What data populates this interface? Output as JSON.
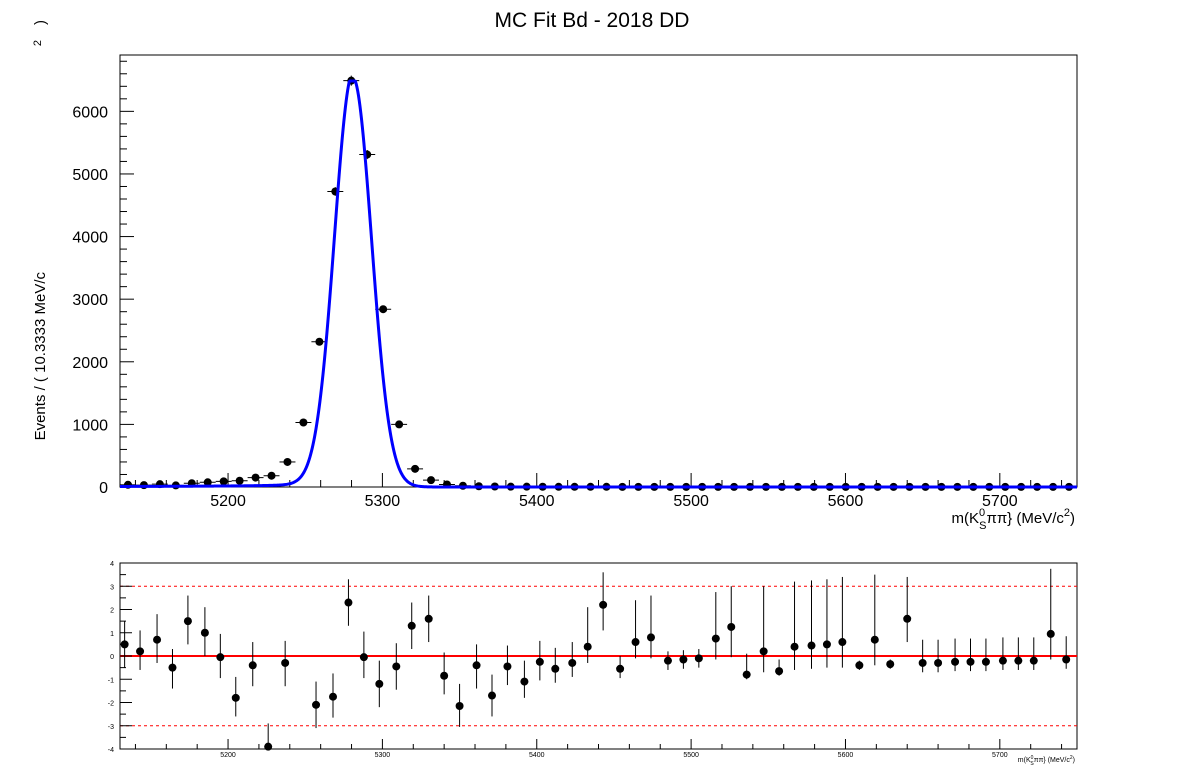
{
  "page": {
    "title": "MC Fit Bd - 2018 DD"
  },
  "chart_data": [
    {
      "type": "scatter",
      "subtype": "fit",
      "title": "MC Fit Bd - 2018 DD",
      "xlabel": "m(K_S^0 ππ} (MeV/c^2)",
      "ylabel": "Events / ( 10.3333 MeV/c  2 )",
      "xlim": [
        5130,
        5750
      ],
      "ylim": [
        0,
        6900
      ],
      "xticks": [
        5200,
        5300,
        5400,
        5500,
        5600,
        5700
      ],
      "xtick_labels": [
        "5200",
        "5300",
        "5400",
        "5500",
        "5600",
        "5700"
      ],
      "yticks": [
        0,
        1000,
        2000,
        3000,
        4000,
        5000,
        6000
      ],
      "ytick_labels": [
        "0",
        "1000",
        "2000",
        "3000",
        "4000",
        "5000",
        "6000"
      ],
      "bin_width": 10.3333,
      "x": [
        5135.17,
        5145.5,
        5155.83,
        5166.17,
        5176.5,
        5186.83,
        5197.17,
        5207.5,
        5217.83,
        5228.17,
        5238.5,
        5248.83,
        5259.17,
        5269.5,
        5279.83,
        5290.17,
        5300.5,
        5310.83,
        5321.17,
        5331.5,
        5341.83,
        5352.17,
        5362.5,
        5372.83,
        5383.17,
        5393.5,
        5403.83,
        5414.17,
        5424.5,
        5434.83,
        5445.17,
        5455.5,
        5465.83,
        5476.17,
        5486.5,
        5496.83,
        5507.17,
        5517.5,
        5527.83,
        5538.17,
        5548.5,
        5558.83,
        5569.17,
        5579.5,
        5589.83,
        5600.17,
        5610.5,
        5620.83,
        5631.17,
        5641.5,
        5651.83,
        5662.17,
        5672.5,
        5682.83,
        5693.17,
        5703.5,
        5713.83,
        5724.17,
        5734.5,
        5744.83
      ],
      "series": [
        {
          "values": [
            35,
            30,
            45,
            25,
            60,
            75,
            90,
            100,
            150,
            180,
            400,
            1030,
            2320,
            4720,
            6490,
            5310,
            2840,
            1000,
            290,
            110,
            40,
            20,
            12,
            8,
            5,
            5,
            4,
            3,
            3,
            3,
            3,
            2,
            2,
            2,
            2,
            2,
            2,
            2,
            2,
            2,
            2,
            2,
            2,
            2,
            2,
            2,
            2,
            2,
            2,
            2,
            2,
            2,
            2,
            2,
            2,
            2,
            2,
            2,
            2,
            2
          ]
        }
      ],
      "fit_curve": {
        "model": "signal peak",
        "color": "#0000ff",
        "mean": 5281,
        "sigma": 12,
        "peak": 6480
      }
    },
    {
      "type": "scatter",
      "subtype": "pull",
      "xlabel": "m(K_S^0 ππ} (MeV/c^2)",
      "ylabel": "",
      "xlim": [
        5130,
        5750
      ],
      "ylim": [
        -4,
        4
      ],
      "xticks": [
        5200,
        5300,
        5400,
        5500,
        5600,
        5700
      ],
      "xtick_labels": [
        "5200",
        "5300",
        "5400",
        "5500",
        "5600",
        "5700"
      ],
      "yticks": [
        -4,
        -3,
        -2,
        -1,
        0,
        1,
        2,
        3,
        4
      ],
      "ytick_labels": [
        "-4",
        "-3",
        "-2",
        "-1",
        "0",
        "1",
        "2",
        "3",
        "4"
      ],
      "reference_lines": [
        {
          "y": 0,
          "color": "#ff0000",
          "style": "solid"
        },
        {
          "y": 3,
          "color": "#ff0000",
          "style": "dashed"
        },
        {
          "y": -3,
          "color": "#ff0000",
          "style": "dashed"
        }
      ],
      "points": [
        {
          "x": 5133,
          "y": 0.5,
          "err_lo": 1.0,
          "err_hi": 1.0
        },
        {
          "x": 5143,
          "y": 0.2,
          "err_lo": 0.8,
          "err_hi": 0.9
        },
        {
          "x": 5154,
          "y": 0.7,
          "err_lo": 1.0,
          "err_hi": 1.1
        },
        {
          "x": 5164,
          "y": -0.5,
          "err_lo": 0.9,
          "err_hi": 0.8
        },
        {
          "x": 5174,
          "y": 1.5,
          "err_lo": 1.0,
          "err_hi": 1.1
        },
        {
          "x": 5185,
          "y": 1.0,
          "err_lo": 1.0,
          "err_hi": 1.1
        },
        {
          "x": 5195,
          "y": -0.05,
          "err_lo": 0.9,
          "err_hi": 1.0
        },
        {
          "x": 5205,
          "y": -1.8,
          "err_lo": 0.8,
          "err_hi": 0.9
        },
        {
          "x": 5216,
          "y": -0.4,
          "err_lo": 0.9,
          "err_hi": 1.0
        },
        {
          "x": 5226,
          "y": -3.9,
          "err_lo": 0.8,
          "err_hi": 1.0
        },
        {
          "x": 5237,
          "y": -0.3,
          "err_lo": 1.0,
          "err_hi": 0.95
        },
        {
          "x": 5257,
          "y": -2.1,
          "err_lo": 1.0,
          "err_hi": 1.0
        },
        {
          "x": 5268,
          "y": -1.75,
          "err_lo": 0.9,
          "err_hi": 1.0
        },
        {
          "x": 5278,
          "y": 2.3,
          "err_lo": 1.0,
          "err_hi": 1.0
        },
        {
          "x": 5288,
          "y": -0.05,
          "err_lo": 0.9,
          "err_hi": 1.1
        },
        {
          "x": 5298,
          "y": -1.2,
          "err_lo": 1.0,
          "err_hi": 1.0
        },
        {
          "x": 5309,
          "y": -0.45,
          "err_lo": 1.0,
          "err_hi": 1.0
        },
        {
          "x": 5319,
          "y": 1.3,
          "err_lo": 1.0,
          "err_hi": 1.0
        },
        {
          "x": 5330,
          "y": 1.6,
          "err_lo": 1.0,
          "err_hi": 1.0
        },
        {
          "x": 5340,
          "y": -0.85,
          "err_lo": 0.8,
          "err_hi": 1.0
        },
        {
          "x": 5350,
          "y": -2.15,
          "err_lo": 0.9,
          "err_hi": 0.95
        },
        {
          "x": 5361,
          "y": -0.4,
          "err_lo": 1.0,
          "err_hi": 0.9
        },
        {
          "x": 5371,
          "y": -1.7,
          "err_lo": 0.9,
          "err_hi": 0.9
        },
        {
          "x": 5381,
          "y": -0.45,
          "err_lo": 0.8,
          "err_hi": 0.9
        },
        {
          "x": 5392,
          "y": -1.1,
          "err_lo": 0.7,
          "err_hi": 0.9
        },
        {
          "x": 5402,
          "y": -0.25,
          "err_lo": 0.8,
          "err_hi": 0.9
        },
        {
          "x": 5412,
          "y": -0.55,
          "err_lo": 0.6,
          "err_hi": 0.9
        },
        {
          "x": 5423,
          "y": -0.3,
          "err_lo": 0.6,
          "err_hi": 0.9
        },
        {
          "x": 5433,
          "y": 0.4,
          "err_lo": 0.7,
          "err_hi": 1.7
        },
        {
          "x": 5443,
          "y": 2.2,
          "err_lo": 1.1,
          "err_hi": 1.4
        },
        {
          "x": 5454,
          "y": -0.55,
          "err_lo": 0.4,
          "err_hi": 0.55
        },
        {
          "x": 5464,
          "y": 0.6,
          "err_lo": 0.7,
          "err_hi": 1.8
        },
        {
          "x": 5474,
          "y": 0.8,
          "err_lo": 0.9,
          "err_hi": 1.8
        },
        {
          "x": 5485,
          "y": -0.2,
          "err_lo": 0.4,
          "err_hi": 0.4
        },
        {
          "x": 5495,
          "y": -0.15,
          "err_lo": 0.4,
          "err_hi": 0.4
        },
        {
          "x": 5505,
          "y": -0.1,
          "err_lo": 0.4,
          "err_hi": 0.4
        },
        {
          "x": 5516,
          "y": 0.75,
          "err_lo": 0.9,
          "err_hi": 2.0
        },
        {
          "x": 5526,
          "y": 1.25,
          "err_lo": 1.3,
          "err_hi": 1.75
        },
        {
          "x": 5536,
          "y": -0.8,
          "err_lo": 0.2,
          "err_hi": 0.9
        },
        {
          "x": 5547,
          "y": 0.2,
          "err_lo": 0.9,
          "err_hi": 2.8
        },
        {
          "x": 5557,
          "y": -0.65,
          "err_lo": 0.2,
          "err_hi": 0.5
        },
        {
          "x": 5567,
          "y": 0.4,
          "err_lo": 1.0,
          "err_hi": 2.8
        },
        {
          "x": 5578,
          "y": 0.45,
          "err_lo": 1.0,
          "err_hi": 2.8
        },
        {
          "x": 5588,
          "y": 0.5,
          "err_lo": 1.0,
          "err_hi": 2.8
        },
        {
          "x": 5598,
          "y": 0.6,
          "err_lo": 1.1,
          "err_hi": 2.8
        },
        {
          "x": 5609,
          "y": -0.4,
          "err_lo": 0.2,
          "err_hi": 0.2
        },
        {
          "x": 5619,
          "y": 0.7,
          "err_lo": 1.1,
          "err_hi": 2.8
        },
        {
          "x": 5629,
          "y": -0.35,
          "err_lo": 0.2,
          "err_hi": 0.2
        },
        {
          "x": 5640,
          "y": 1.6,
          "err_lo": 1.0,
          "err_hi": 1.8
        },
        {
          "x": 5650,
          "y": -0.3,
          "err_lo": 0.4,
          "err_hi": 1.0
        },
        {
          "x": 5660,
          "y": -0.3,
          "err_lo": 0.4,
          "err_hi": 1.0
        },
        {
          "x": 5671,
          "y": -0.25,
          "err_lo": 0.4,
          "err_hi": 1.0
        },
        {
          "x": 5681,
          "y": -0.25,
          "err_lo": 0.4,
          "err_hi": 1.0
        },
        {
          "x": 5691,
          "y": -0.25,
          "err_lo": 0.4,
          "err_hi": 1.0
        },
        {
          "x": 5702,
          "y": -0.2,
          "err_lo": 0.4,
          "err_hi": 1.0
        },
        {
          "x": 5712,
          "y": -0.2,
          "err_lo": 0.4,
          "err_hi": 1.0
        },
        {
          "x": 5722,
          "y": -0.2,
          "err_lo": 0.4,
          "err_hi": 1.0
        },
        {
          "x": 5733,
          "y": 0.95,
          "err_lo": 1.1,
          "err_hi": 2.8
        },
        {
          "x": 5743,
          "y": -0.15,
          "err_lo": 0.4,
          "err_hi": 1.0
        }
      ]
    }
  ]
}
